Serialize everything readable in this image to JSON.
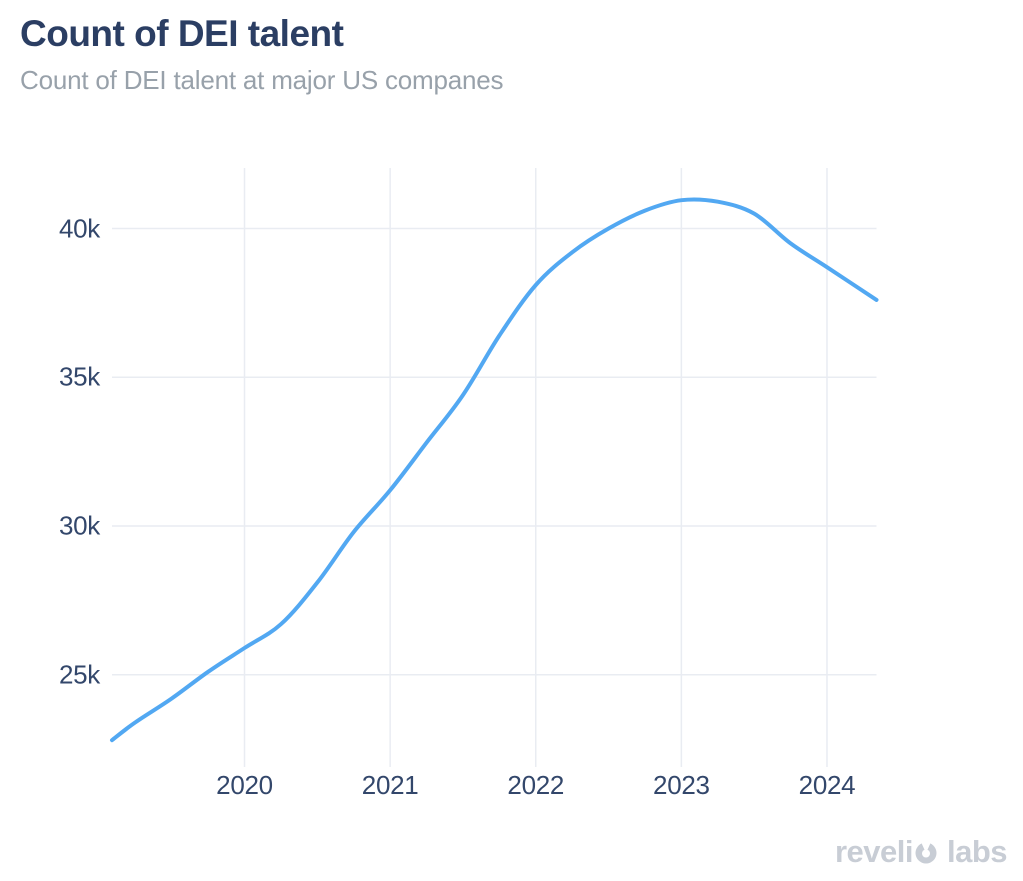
{
  "header": {
    "title": "Count of DEI talent",
    "subtitle": "Count of DEI talent at major US companes"
  },
  "branding": {
    "logo_part1": "reveli",
    "logo_part2": "labs",
    "logo_icon": "revelio-o-icon",
    "logo_color": "#c8cdd5"
  },
  "colors": {
    "title": "#2b3e63",
    "subtitle": "#98a1aa",
    "tick_labels": "#33476b",
    "gridline": "#e9ecf2",
    "line": "#52a8f2",
    "background": "#ffffff"
  },
  "chart_data": {
    "type": "line",
    "title": "Count of DEI talent",
    "subtitle": "Count of DEI talent at major US companes",
    "xlabel": "",
    "ylabel": "",
    "legend": "none",
    "grid": true,
    "x_tick_labels": [
      "2020",
      "2021",
      "2022",
      "2023",
      "2024"
    ],
    "x_tick_values": [
      2020,
      2021,
      2022,
      2023,
      2024
    ],
    "y_tick_labels": [
      "25k",
      "30k",
      "35k",
      "40k"
    ],
    "y_tick_values": [
      25,
      30,
      35,
      40
    ],
    "xlim": [
      2019.09,
      2024.34
    ],
    "ylim": [
      22,
      42
    ],
    "unit": "thousands of people",
    "series": [
      {
        "name": "Count of DEI talent",
        "color": "#52a8f2",
        "points": [
          [
            2019.09,
            22.8
          ],
          [
            2019.25,
            23.4
          ],
          [
            2019.5,
            24.2
          ],
          [
            2019.75,
            25.1
          ],
          [
            2020.0,
            25.9
          ],
          [
            2020.25,
            26.7
          ],
          [
            2020.5,
            28.1
          ],
          [
            2020.75,
            29.8
          ],
          [
            2021.0,
            31.2
          ],
          [
            2021.25,
            32.8
          ],
          [
            2021.5,
            34.4
          ],
          [
            2021.75,
            36.4
          ],
          [
            2022.0,
            38.1
          ],
          [
            2022.25,
            39.2
          ],
          [
            2022.5,
            40.0
          ],
          [
            2022.75,
            40.6
          ],
          [
            2023.0,
            40.95
          ],
          [
            2023.25,
            40.9
          ],
          [
            2023.5,
            40.5
          ],
          [
            2023.75,
            39.5
          ],
          [
            2024.0,
            38.7
          ],
          [
            2024.34,
            37.6
          ]
        ]
      }
    ]
  }
}
